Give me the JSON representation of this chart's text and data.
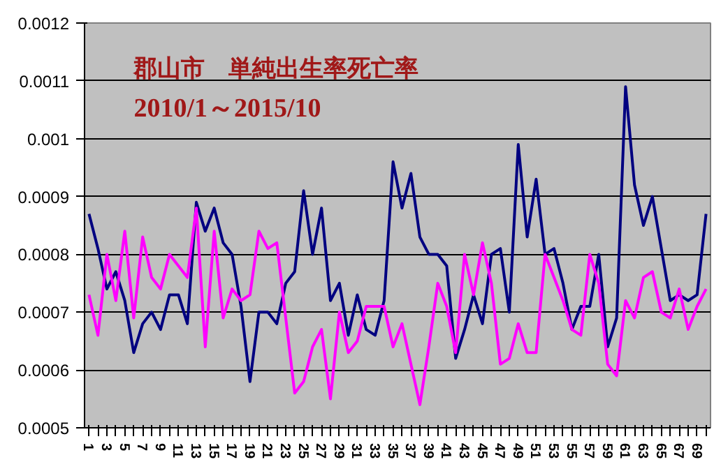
{
  "chart_data": {
    "type": "line",
    "title": "郡山市　単純出生率死亡率",
    "subtitle": "2010/1～2015/10",
    "categories": [
      "1",
      null,
      "3",
      null,
      "5",
      null,
      "7",
      null,
      "9",
      null,
      "11",
      null,
      "13",
      null,
      "15",
      null,
      "17",
      null,
      "19",
      null,
      "21",
      null,
      "23",
      null,
      "25",
      null,
      "27",
      null,
      "29",
      null,
      "31",
      null,
      "33",
      null,
      "35",
      null,
      "37",
      null,
      "39",
      null,
      "41",
      null,
      "43",
      null,
      "45",
      null,
      "47",
      null,
      "49",
      null,
      "51",
      null,
      "53",
      null,
      "55",
      null,
      "57",
      null,
      "59",
      null,
      "61",
      null,
      "63",
      null,
      "65",
      null,
      "67",
      null,
      "69",
      null
    ],
    "series": [
      {
        "color": "#000080",
        "values": [
          0.00087,
          0.00081,
          0.00074,
          0.00077,
          0.00072,
          0.00063,
          0.00068,
          0.0007,
          0.00067,
          0.00073,
          0.00073,
          0.00068,
          0.00089,
          0.00084,
          0.00088,
          0.00082,
          0.0008,
          0.00071,
          0.00058,
          0.0007,
          0.0007,
          0.00068,
          0.00075,
          0.00077,
          0.00091,
          0.0008,
          0.00088,
          0.00072,
          0.00075,
          0.00066,
          0.00073,
          0.00067,
          0.00066,
          0.00072,
          0.00096,
          0.00088,
          0.00094,
          0.00083,
          0.0008,
          0.0008,
          0.00078,
          0.00062,
          0.00067,
          0.00073,
          0.00068,
          0.0008,
          0.00081,
          0.0007,
          0.00099,
          0.00083,
          0.00093,
          0.0008,
          0.00081,
          0.00075,
          0.00067,
          0.00071,
          0.00071,
          0.0008,
          0.00064,
          0.00069,
          0.00109,
          0.00092,
          0.00085,
          0.0009,
          0.00081,
          0.00072,
          0.00073,
          0.00072,
          0.00073,
          0.00087
        ]
      },
      {
        "color": "#ff00ff",
        "values": [
          0.00073,
          0.00066,
          0.0008,
          0.00072,
          0.00084,
          0.00069,
          0.00083,
          0.00076,
          0.00074,
          0.0008,
          0.00078,
          0.00076,
          0.00088,
          0.00064,
          0.00084,
          0.00069,
          0.00074,
          0.00072,
          0.00073,
          0.00084,
          0.00081,
          0.00082,
          0.00069,
          0.00056,
          0.00058,
          0.00064,
          0.00067,
          0.00055,
          0.0007,
          0.00063,
          0.00065,
          0.00071,
          0.00071,
          0.00071,
          0.00064,
          0.00068,
          0.00061,
          0.00054,
          0.00064,
          0.00075,
          0.00071,
          0.00063,
          0.0008,
          0.00073,
          0.00082,
          0.00075,
          0.00061,
          0.00062,
          0.00068,
          0.00063,
          0.00063,
          0.0008,
          0.00076,
          0.00072,
          0.00067,
          0.00066,
          0.0008,
          0.00075,
          0.00061,
          0.00059,
          0.00072,
          0.00069,
          0.00076,
          0.00077,
          0.0007,
          0.00069,
          0.00074,
          0.00067,
          0.00071,
          0.00074
        ]
      }
    ],
    "ylim": [
      0.0005,
      0.0012
    ],
    "yticks": [
      0.0005,
      0.0006,
      0.0007,
      0.0008,
      0.0009,
      0.001,
      0.0011,
      0.0012
    ],
    "grid": "y",
    "marker": "none",
    "line_style": "solid"
  }
}
